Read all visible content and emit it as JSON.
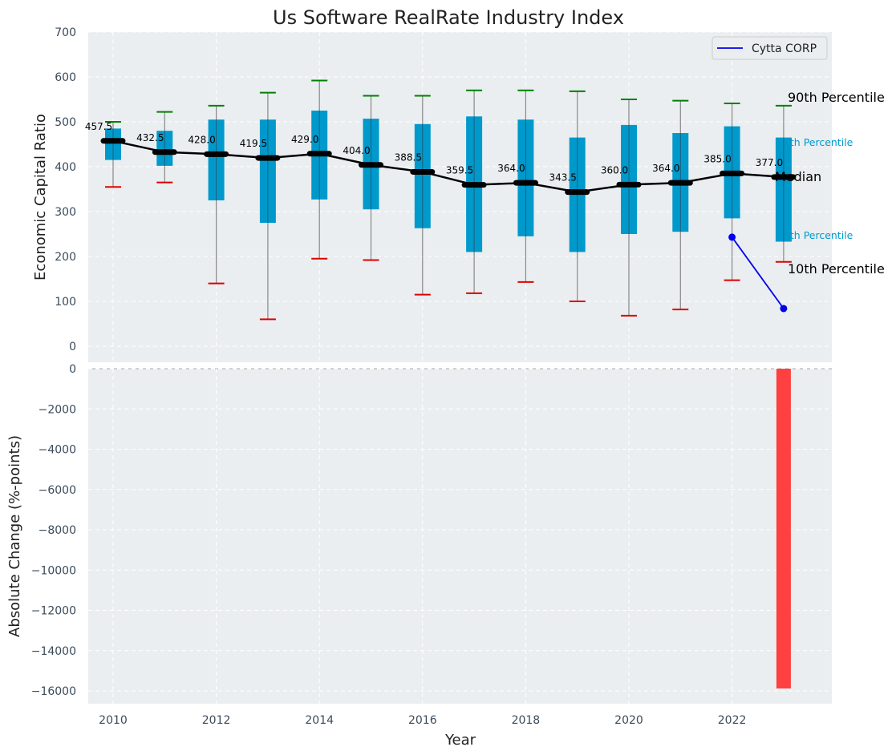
{
  "chart_data": [
    {
      "type": "box",
      "title": "Us Software RealRate Industry Index",
      "xlabel": "",
      "ylabel": "Economic Capital Ratio",
      "ylim": [
        0,
        700
      ],
      "yticks": [
        "0",
        "100",
        "200",
        "300",
        "400",
        "500",
        "600",
        "700"
      ],
      "grid": true,
      "legend_position": "top-right",
      "years": [
        2010,
        2011,
        2012,
        2013,
        2014,
        2015,
        2016,
        2017,
        2018,
        2019,
        2020,
        2021,
        2022,
        2023
      ],
      "p10": [
        355,
        365,
        140,
        60,
        195,
        192,
        115,
        118,
        143,
        100,
        68,
        82,
        147,
        188
      ],
      "q1": [
        415,
        402,
        325,
        275,
        327,
        305,
        263,
        210,
        245,
        210,
        250,
        255,
        285,
        233
      ],
      "median": [
        457.5,
        432.5,
        428.0,
        419.5,
        429.0,
        404.0,
        388.5,
        359.5,
        364.0,
        343.5,
        360.0,
        364.0,
        385.0,
        377.0
      ],
      "median_labels": [
        "457.5",
        "432.5",
        "428.0",
        "419.5",
        "429.0",
        "404.0",
        "388.5",
        "359.5",
        "364.0",
        "343.5",
        "360.0",
        "364.0",
        "385.0",
        "377.0"
      ],
      "q3": [
        485,
        480,
        505,
        505,
        525,
        507,
        495,
        512,
        505,
        465,
        493,
        475,
        490,
        465
      ],
      "p90": [
        500,
        522,
        536,
        565,
        592,
        558,
        558,
        570,
        570,
        568,
        550,
        547,
        541,
        536
      ],
      "company": {
        "name": "Cytta CORP",
        "x": [
          2022,
          2023
        ],
        "y": [
          243,
          84
        ]
      },
      "annotations": {
        "p90": "90th Percentile",
        "p75": "75th Percentile",
        "median": "Median",
        "p25": "25th Percentile",
        "p10": "10th Percentile"
      },
      "colors": {
        "box": "#0099cc",
        "cap_top": "#008000",
        "cap_bottom": "#e00000",
        "company": "#0000ee",
        "plot_bg": "#eaeef0"
      }
    },
    {
      "type": "bar",
      "xlabel": "Year",
      "ylabel": "Absolute Change (%-points)",
      "ylim": [
        -16600,
        0
      ],
      "yticks": [
        "0",
        "−2000",
        "−4000",
        "−6000",
        "−8000",
        "−10000",
        "−12000",
        "−14000",
        "−16000"
      ],
      "xticks": [
        "2010",
        "2012",
        "2014",
        "2016",
        "2018",
        "2020",
        "2022"
      ],
      "bars": [
        {
          "x": 2023,
          "value": -15880
        }
      ],
      "bar_color": "#ff4040",
      "grid": true
    }
  ]
}
